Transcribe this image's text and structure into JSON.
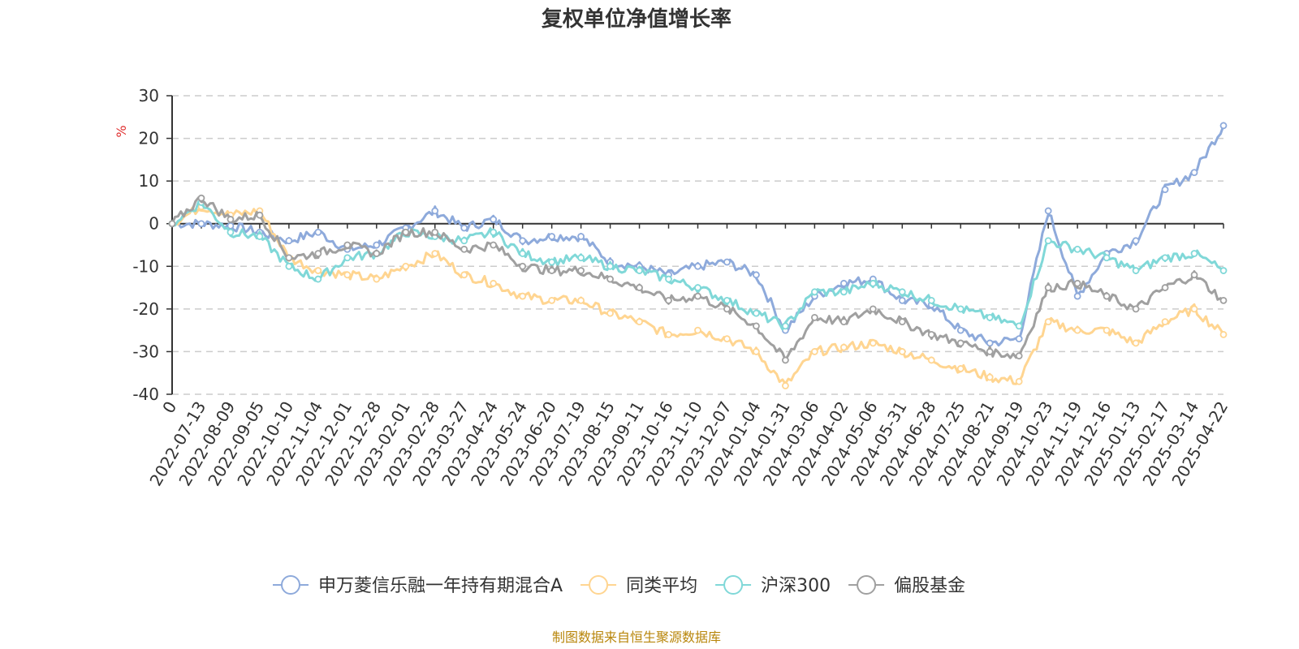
{
  "chart_data": {
    "type": "line",
    "title": "复权单位净值增长率",
    "ylabel": "%",
    "ylim": [
      -40,
      30
    ],
    "yticks": [
      "30",
      "20",
      "10",
      "0",
      "-10",
      "-20",
      "-30",
      "-40"
    ],
    "xticks": [
      "0",
      "2022-07-13",
      "2022-08-09",
      "2022-09-05",
      "2022-10-10",
      "2022-11-04",
      "2022-12-01",
      "2022-12-28",
      "2023-02-01",
      "2023-02-28",
      "2023-03-27",
      "2023-04-24",
      "2023-05-24",
      "2023-06-20",
      "2023-07-19",
      "2023-08-15",
      "2023-09-11",
      "2023-10-16",
      "2023-11-10",
      "2023-12-07",
      "2024-01-04",
      "2024-01-31",
      "2024-03-06",
      "2024-04-02",
      "2024-05-06",
      "2024-05-31",
      "2024-06-28",
      "2024-07-25",
      "2024-08-21",
      "2024-09-19",
      "2024-10-23",
      "2024-11-19",
      "2024-12-16",
      "2025-01-13",
      "2025-02-17",
      "2025-03-14",
      "2025-04-22"
    ],
    "grid": "dashed horizontal",
    "legend_position": "bottom-center",
    "source_note": "制图数据来自恒生聚源数据库",
    "series": [
      {
        "name": "申万菱信乐融一年持有期混合A",
        "color": "#8eaadb",
        "values": [
          0,
          0,
          -0.5,
          -2,
          -4,
          -2,
          -6,
          -5,
          -1,
          3,
          -1,
          1,
          -4,
          -3,
          -3,
          -9,
          -10,
          -12,
          -10,
          -9,
          -12,
          -25,
          -17,
          -14,
          -13,
          -18,
          -19,
          -25,
          -28,
          -27,
          3,
          -17,
          -7,
          -4,
          8,
          12,
          23
        ]
      },
      {
        "name": "同类平均",
        "color": "#ffd591",
        "values": [
          0,
          4,
          2,
          3,
          -8,
          -11,
          -12,
          -13,
          -10,
          -7,
          -12,
          -14,
          -17,
          -18,
          -18,
          -21,
          -23,
          -26,
          -25,
          -27,
          -30,
          -38,
          -30,
          -29,
          -28,
          -30,
          -32,
          -34,
          -36,
          -37,
          -23,
          -25,
          -25,
          -28,
          -23,
          -20,
          -26
        ]
      },
      {
        "name": "沪深300",
        "color": "#80d8d8",
        "values": [
          0,
          5,
          -2,
          -3,
          -10,
          -13,
          -8,
          -7,
          -2,
          -3,
          -4,
          -2,
          -7,
          -9,
          -8,
          -10,
          -11,
          -13,
          -15,
          -18,
          -21,
          -24,
          -16,
          -16,
          -14,
          -16,
          -18,
          -20,
          -22,
          -24,
          -4,
          -6,
          -8,
          -11,
          -8,
          -7,
          -11
        ]
      },
      {
        "name": "偏股基金",
        "color": "#a0a0a0",
        "values": [
          0,
          6,
          1,
          2,
          -8,
          -7,
          -5,
          -7,
          -2,
          -2,
          -6,
          -5,
          -10,
          -11,
          -11,
          -13,
          -15,
          -18,
          -17,
          -20,
          -24,
          -32,
          -22,
          -23,
          -20,
          -23,
          -26,
          -28,
          -30,
          -31,
          -15,
          -14,
          -17,
          -20,
          -15,
          -12,
          -18
        ]
      }
    ]
  }
}
